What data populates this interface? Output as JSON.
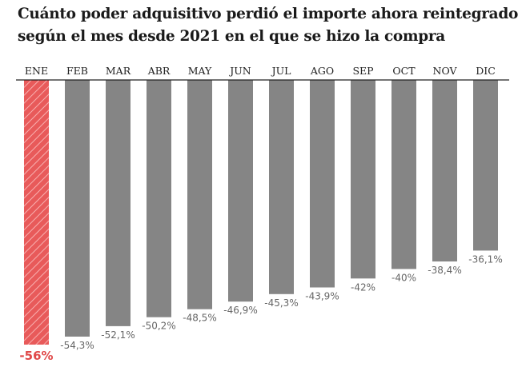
{
  "title_lines": [
    "Cuánto poder adquisitivo perdió el importe ahora reintegrado",
    "según el mes desde 2021 en el que se hizo la compra"
  ],
  "colors": {
    "bar": "#858585",
    "highlight": "#e85a5a",
    "highlight_stripe": "#f8b0b0",
    "axis": "#222222"
  },
  "chart_data": {
    "type": "bar",
    "categories": [
      "ENE",
      "FEB",
      "MAR",
      "ABR",
      "MAY",
      "JUN",
      "JUL",
      "AGO",
      "SEP",
      "OCT",
      "NOV",
      "DIC"
    ],
    "values": [
      -56,
      -54.3,
      -52.1,
      -50.2,
      -48.5,
      -46.9,
      -45.3,
      -43.9,
      -42,
      -40,
      -38.4,
      -36.1
    ],
    "value_labels": [
      "-56%",
      "-54,3%",
      "-52,1%",
      "-50,2%",
      "-48,5%",
      "-46,9%",
      "-45,3%",
      "-43,9%",
      "-42%",
      "-40%",
      "-38,4%",
      "-36,1%"
    ],
    "highlight_index": 0,
    "highlight_style": "hatched",
    "ylim": [
      -56,
      0
    ],
    "xaxis_position": "top",
    "grid": false,
    "title": "Cuánto poder adquisitivo perdió el importe ahora reintegrado según el mes desde 2021 en el que se hizo la compra",
    "xlabel": "",
    "ylabel": ""
  }
}
